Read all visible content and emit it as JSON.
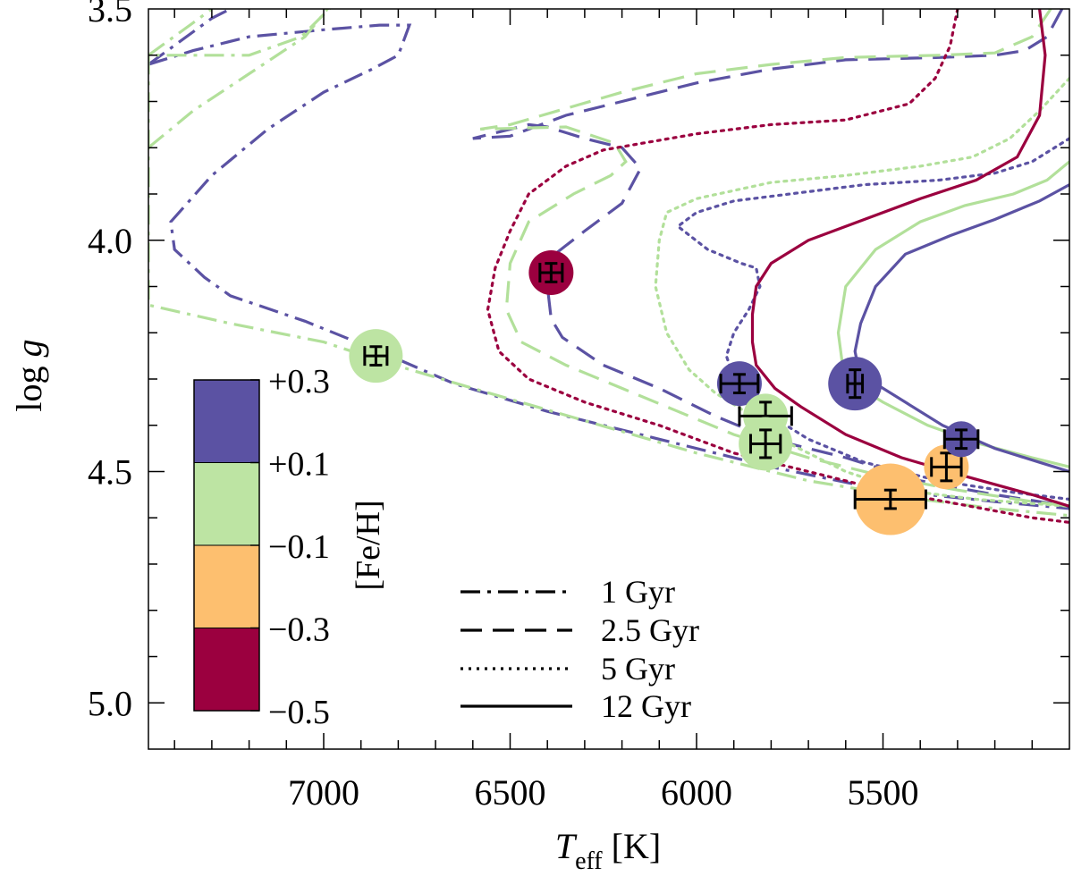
{
  "chart_data": {
    "type": "scatter",
    "title": "",
    "xlabel_main": "T",
    "xlabel_sub": "eff",
    "xlabel_unit": " [K]",
    "ylabel_main": "log ",
    "ylabel_italic": "g",
    "xlim": [
      7470,
      5000
    ],
    "ylim": [
      3.5,
      5.1
    ],
    "x_ticks": [
      7000,
      6500,
      6000,
      5500
    ],
    "x_tick_labels": [
      "7000",
      "6500",
      "6000",
      "5500"
    ],
    "y_ticks": [
      3.5,
      4.0,
      4.5,
      5.0
    ],
    "y_tick_labels": [
      "3.5",
      "4.0",
      "4.5",
      "5.0"
    ],
    "colors": {
      "+0.3": "#5b52a3",
      "+0.1": "#bde4a3",
      "-0.1": "#fdbf6f",
      "-0.3": "#9b003f",
      "line_purple": "#5b52a3",
      "line_green": "#b2e09a",
      "line_red": "#9b003f"
    },
    "colorbar": {
      "label": "[Fe/H]",
      "tick_labels": [
        "+0.3",
        "+0.1",
        "−0.1",
        "−0.3",
        "−0.5"
      ],
      "bins": [
        {
          "range": "+0.1 to +0.3",
          "color": "#5b52a3"
        },
        {
          "range": "-0.1 to +0.1",
          "color": "#bde4a3"
        },
        {
          "range": "-0.3 to -0.1",
          "color": "#fdbf6f"
        },
        {
          "range": "-0.5 to -0.3",
          "color": "#9b003f"
        }
      ]
    },
    "legend": {
      "position": "bottom-center",
      "entries": [
        {
          "label": "1 Gyr",
          "style": "dashdot"
        },
        {
          "label": "2.5 Gyr",
          "style": "dashed"
        },
        {
          "label": "5 Gyr",
          "style": "dotted"
        },
        {
          "label": "12 Gyr",
          "style": "solid"
        }
      ]
    },
    "stars": [
      {
        "teff": 6860,
        "logg": 4.25,
        "teff_err": 30,
        "logg_err": 0.02,
        "feh": 0.0,
        "color": "#bde4a3",
        "size": "medium"
      },
      {
        "teff": 6390,
        "logg": 4.07,
        "teff_err": 30,
        "logg_err": 0.02,
        "feh": -0.4,
        "color": "#9b003f",
        "size": "small"
      },
      {
        "teff": 5885,
        "logg": 4.31,
        "teff_err": 50,
        "logg_err": 0.02,
        "feh": 0.2,
        "color": "#5b52a3",
        "size": "small"
      },
      {
        "teff": 5815,
        "logg": 4.38,
        "teff_err": 70,
        "logg_err": 0.03,
        "feh": 0.0,
        "color": "#bde4a3",
        "size": "small"
      },
      {
        "teff": 5815,
        "logg": 4.44,
        "teff_err": 40,
        "logg_err": 0.03,
        "feh": 0.0,
        "color": "#bde4a3",
        "size": "medium"
      },
      {
        "teff": 5575,
        "logg": 4.31,
        "teff_err": 20,
        "logg_err": 0.03,
        "feh": 0.2,
        "color": "#5b52a3",
        "size": "medium"
      },
      {
        "teff": 5480,
        "logg": 4.56,
        "teff_err": 95,
        "logg_err": 0.02,
        "feh": -0.2,
        "color": "#fdbf6f",
        "size": "large"
      },
      {
        "teff": 5330,
        "logg": 4.49,
        "teff_err": 40,
        "logg_err": 0.03,
        "feh": -0.2,
        "color": "#fdbf6f",
        "size": "small"
      },
      {
        "teff": 5290,
        "logg": 4.43,
        "teff_err": 45,
        "logg_err": 0.02,
        "feh": 0.2,
        "color": "#5b52a3",
        "size": "tiny"
      }
    ],
    "isochrones": [
      {
        "name": "1 Gyr [Fe/H]=+0.2 (a)",
        "style": "dashdot",
        "color": "#5b52a3",
        "points": [
          [
            7470,
            3.62
          ],
          [
            7300,
            3.52
          ],
          [
            7250,
            3.5
          ]
        ]
      },
      {
        "name": "1 Gyr [Fe/H]=0.0 (a)",
        "style": "dashdot",
        "color": "#b2e09a",
        "points": [
          [
            7470,
            3.6
          ],
          [
            7350,
            3.53
          ],
          [
            7300,
            3.5
          ]
        ]
      },
      {
        "name": "1 Gyr [Fe/H]=+0.2 (b)",
        "style": "dashdot",
        "color": "#5b52a3",
        "points": [
          [
            7470,
            3.62
          ],
          [
            7350,
            3.59
          ],
          [
            7200,
            3.56
          ],
          [
            7000,
            3.545
          ],
          [
            6850,
            3.535
          ],
          [
            6770,
            3.535
          ],
          [
            6800,
            3.6
          ],
          [
            6870,
            3.63
          ],
          [
            7000,
            3.68
          ],
          [
            7150,
            3.76
          ],
          [
            7300,
            3.86
          ],
          [
            7410,
            3.96
          ],
          [
            7400,
            4.02
          ],
          [
            7320,
            4.08
          ],
          [
            7250,
            4.12
          ],
          [
            7050,
            4.175
          ],
          [
            6850,
            4.24
          ],
          [
            6650,
            4.31
          ],
          [
            6400,
            4.37
          ],
          [
            6100,
            4.43
          ],
          [
            5800,
            4.49
          ],
          [
            5500,
            4.54
          ],
          [
            5200,
            4.565
          ],
          [
            5000,
            4.58
          ]
        ]
      },
      {
        "name": "1 Gyr [Fe/H]=0.0 (b)",
        "style": "dashdot",
        "color": "#b2e09a",
        "points": [
          [
            7470,
            3.8
          ],
          [
            7350,
            3.72
          ],
          [
            7200,
            3.64
          ],
          [
            7050,
            3.56
          ],
          [
            6990,
            3.5
          ],
          [
            6960,
            3.48
          ],
          [
            7060,
            3.56
          ],
          [
            7200,
            3.6
          ],
          [
            7470,
            3.6
          ],
          [
            7470,
            4.14
          ],
          [
            7250,
            4.18
          ],
          [
            7000,
            4.22
          ],
          [
            6850,
            4.26
          ],
          [
            6600,
            4.32
          ],
          [
            6300,
            4.39
          ],
          [
            6000,
            4.46
          ],
          [
            5700,
            4.52
          ],
          [
            5400,
            4.56
          ],
          [
            5200,
            4.58
          ],
          [
            5000,
            4.595
          ]
        ]
      },
      {
        "name": "2.5 Gyr [Fe/H]=+0.2",
        "style": "dashed",
        "color": "#5b52a3",
        "points": [
          [
            5020,
            3.5
          ],
          [
            5060,
            3.56
          ],
          [
            5120,
            3.59
          ],
          [
            5200,
            3.6
          ],
          [
            5350,
            3.605
          ],
          [
            5600,
            3.61
          ],
          [
            5800,
            3.63
          ],
          [
            6000,
            3.66
          ],
          [
            6200,
            3.7
          ],
          [
            6350,
            3.73
          ],
          [
            6500,
            3.775
          ],
          [
            6600,
            3.78
          ],
          [
            6450,
            3.75
          ],
          [
            6400,
            3.755
          ],
          [
            6300,
            3.78
          ],
          [
            6200,
            3.8
          ],
          [
            6150,
            3.845
          ],
          [
            6200,
            3.92
          ],
          [
            6300,
            3.98
          ],
          [
            6380,
            4.03
          ],
          [
            6400,
            4.1
          ],
          [
            6390,
            4.17
          ],
          [
            6360,
            4.21
          ],
          [
            6250,
            4.27
          ],
          [
            6100,
            4.32
          ],
          [
            5950,
            4.38
          ],
          [
            5800,
            4.43
          ],
          [
            5600,
            4.47
          ],
          [
            5400,
            4.52
          ],
          [
            5200,
            4.55
          ],
          [
            5000,
            4.575
          ]
        ]
      },
      {
        "name": "2.5 Gyr [Fe/H]=0.0",
        "style": "dashed",
        "color": "#b2e09a",
        "points": [
          [
            5050,
            3.5
          ],
          [
            5100,
            3.56
          ],
          [
            5200,
            3.595
          ],
          [
            5350,
            3.6
          ],
          [
            5600,
            3.605
          ],
          [
            5800,
            3.62
          ],
          [
            6000,
            3.64
          ],
          [
            6200,
            3.68
          ],
          [
            6350,
            3.715
          ],
          [
            6500,
            3.75
          ],
          [
            6580,
            3.76
          ],
          [
            6350,
            3.755
          ],
          [
            6220,
            3.79
          ],
          [
            6190,
            3.83
          ],
          [
            6230,
            3.86
          ],
          [
            6330,
            3.9
          ],
          [
            6450,
            3.96
          ],
          [
            6500,
            4.05
          ],
          [
            6510,
            4.15
          ],
          [
            6470,
            4.22
          ],
          [
            6350,
            4.27
          ],
          [
            6200,
            4.32
          ],
          [
            6050,
            4.37
          ],
          [
            5900,
            4.42
          ],
          [
            5700,
            4.47
          ],
          [
            5500,
            4.51
          ],
          [
            5300,
            4.54
          ],
          [
            5100,
            4.565
          ],
          [
            5000,
            4.575
          ]
        ]
      },
      {
        "name": "5 Gyr [Fe/H]=-0.4",
        "style": "dotted",
        "color": "#9b003f",
        "points": [
          [
            5300,
            3.5
          ],
          [
            5320,
            3.58
          ],
          [
            5360,
            3.65
          ],
          [
            5430,
            3.705
          ],
          [
            5600,
            3.74
          ],
          [
            5800,
            3.75
          ],
          [
            6000,
            3.77
          ],
          [
            6250,
            3.805
          ],
          [
            6350,
            3.84
          ],
          [
            6450,
            3.9
          ],
          [
            6500,
            3.98
          ],
          [
            6540,
            4.06
          ],
          [
            6560,
            4.15
          ],
          [
            6530,
            4.24
          ],
          [
            6450,
            4.3
          ],
          [
            6300,
            4.35
          ],
          [
            6100,
            4.4
          ],
          [
            5900,
            4.46
          ],
          [
            5700,
            4.5
          ],
          [
            5500,
            4.54
          ],
          [
            5300,
            4.57
          ],
          [
            5100,
            4.6
          ],
          [
            5000,
            4.61
          ]
        ]
      },
      {
        "name": "5 Gyr [Fe/H]=0.0",
        "style": "dotted",
        "color": "#b2e09a",
        "points": [
          [
            5000,
            3.65
          ],
          [
            5080,
            3.72
          ],
          [
            5160,
            3.78
          ],
          [
            5260,
            3.82
          ],
          [
            5400,
            3.84
          ],
          [
            5600,
            3.86
          ],
          [
            5800,
            3.875
          ],
          [
            6000,
            3.91
          ],
          [
            6080,
            3.94
          ],
          [
            6100,
            4.0
          ],
          [
            6110,
            4.1
          ],
          [
            6080,
            4.2
          ],
          [
            6020,
            4.28
          ],
          [
            5950,
            4.33
          ],
          [
            5850,
            4.38
          ],
          [
            5750,
            4.44
          ],
          [
            5600,
            4.5
          ],
          [
            5450,
            4.54
          ],
          [
            5250,
            4.56
          ],
          [
            5000,
            4.575
          ]
        ]
      },
      {
        "name": "5 Gyr [Fe/H]=+0.2",
        "style": "dotted",
        "color": "#5b52a3",
        "points": [
          [
            5000,
            3.78
          ],
          [
            5100,
            3.83
          ],
          [
            5200,
            3.855
          ],
          [
            5350,
            3.87
          ],
          [
            5550,
            3.88
          ],
          [
            5750,
            3.9
          ],
          [
            5900,
            3.915
          ],
          [
            6000,
            3.94
          ],
          [
            6050,
            3.97
          ],
          [
            5970,
            4.02
          ],
          [
            5880,
            4.05
          ],
          [
            5840,
            4.06
          ],
          [
            5830,
            4.1
          ],
          [
            5860,
            4.15
          ],
          [
            5900,
            4.2
          ],
          [
            5920,
            4.25
          ],
          [
            5900,
            4.3
          ],
          [
            5860,
            4.34
          ],
          [
            5800,
            4.38
          ],
          [
            5700,
            4.43
          ],
          [
            5550,
            4.48
          ],
          [
            5350,
            4.52
          ],
          [
            5150,
            4.545
          ],
          [
            5000,
            4.56
          ]
        ]
      },
      {
        "name": "12 Gyr [Fe/H]=-0.4",
        "style": "solid",
        "color": "#9b003f",
        "points": [
          [
            5080,
            3.5
          ],
          [
            5065,
            3.6
          ],
          [
            5080,
            3.73
          ],
          [
            5140,
            3.82
          ],
          [
            5250,
            3.87
          ],
          [
            5400,
            3.91
          ],
          [
            5550,
            3.955
          ],
          [
            5700,
            4.0
          ],
          [
            5800,
            4.05
          ],
          [
            5840,
            4.1
          ],
          [
            5850,
            4.16
          ],
          [
            5850,
            4.22
          ],
          [
            5840,
            4.27
          ],
          [
            5790,
            4.32
          ],
          [
            5720,
            4.36
          ],
          [
            5600,
            4.42
          ],
          [
            5450,
            4.47
          ],
          [
            5280,
            4.51
          ],
          [
            5100,
            4.55
          ],
          [
            5000,
            4.575
          ]
        ]
      },
      {
        "name": "12 Gyr [Fe/H]=0.0",
        "style": "solid",
        "color": "#b2e09a",
        "points": [
          [
            5000,
            3.83
          ],
          [
            5060,
            3.87
          ],
          [
            5150,
            3.9
          ],
          [
            5280,
            3.925
          ],
          [
            5400,
            3.96
          ],
          [
            5520,
            4.02
          ],
          [
            5600,
            4.1
          ],
          [
            5620,
            4.2
          ],
          [
            5610,
            4.26
          ],
          [
            5580,
            4.31
          ],
          [
            5500,
            4.35
          ],
          [
            5380,
            4.4
          ],
          [
            5240,
            4.44
          ],
          [
            5100,
            4.47
          ],
          [
            5000,
            4.49
          ]
        ]
      },
      {
        "name": "12 Gyr [Fe/H]=+0.2",
        "style": "solid",
        "color": "#5b52a3",
        "points": [
          [
            5000,
            3.88
          ],
          [
            5080,
            3.915
          ],
          [
            5200,
            3.955
          ],
          [
            5320,
            3.99
          ],
          [
            5440,
            4.03
          ],
          [
            5520,
            4.1
          ],
          [
            5560,
            4.18
          ],
          [
            5575,
            4.24
          ],
          [
            5565,
            4.28
          ],
          [
            5520,
            4.31
          ],
          [
            5440,
            4.35
          ],
          [
            5340,
            4.4
          ],
          [
            5200,
            4.45
          ],
          [
            5080,
            4.48
          ],
          [
            5000,
            4.5
          ]
        ]
      }
    ]
  }
}
